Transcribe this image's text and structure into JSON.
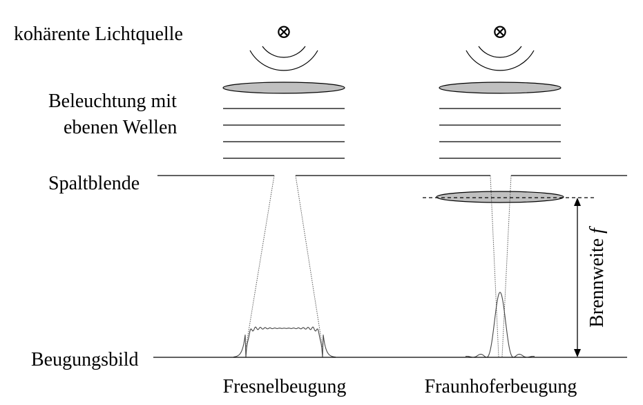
{
  "labels": {
    "light_source": "kohärente Lichtquelle",
    "illumination_line1": "Beleuchtung mit",
    "illumination_line2": "ebenen Wellen",
    "slit": "Spaltblende",
    "pattern": "Beugungsbild",
    "focal_length_text": "Brennweite ",
    "focal_length_symbol": "f"
  },
  "captions": {
    "fresnel": "Fresnelbeugung",
    "fraunhofer": "Fraunhoferbeugung"
  },
  "source_symbol": "⊗"
}
